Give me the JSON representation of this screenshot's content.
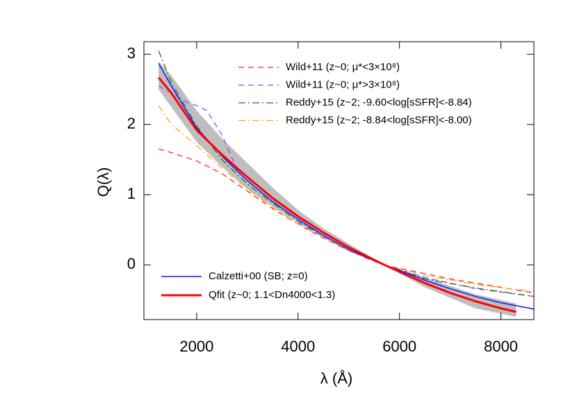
{
  "chart_data": {
    "type": "line",
    "xlabel": "λ (Å)",
    "ylabel": "Q(λ)",
    "xlim": [
      960,
      8650
    ],
    "ylim": [
      -0.78,
      3.18
    ],
    "xticks": [
      2000,
      4000,
      6000,
      8000
    ],
    "yticks": [
      0,
      1,
      2,
      3
    ],
    "band": {
      "color": "#bebebe",
      "x": [
        1250,
        1500,
        2000,
        2500,
        3000,
        3500,
        4000,
        4500,
        5000,
        5700,
        6500,
        7500,
        8300
      ],
      "upper": [
        2.9,
        2.7,
        2.2,
        1.8,
        1.45,
        1.1,
        0.78,
        0.52,
        0.3,
        0,
        -0.18,
        -0.42,
        -0.55
      ],
      "lower": [
        2.5,
        2.25,
        1.75,
        1.4,
        1.08,
        0.83,
        0.6,
        0.4,
        0.2,
        0,
        -0.32,
        -0.62,
        -0.74
      ]
    },
    "series": [
      {
        "name": "Wild+11 (z~0; μ*<3×10⁸)",
        "color": "#ff2020",
        "dash": "dashed",
        "width": 1.3,
        "x": [
          1250,
          1500,
          2000,
          2500,
          3000,
          3500,
          4000,
          4500,
          5000,
          5500,
          5700,
          6000,
          7000,
          8000,
          8650
        ],
        "values": [
          1.65,
          1.6,
          1.48,
          1.3,
          1.05,
          0.8,
          0.58,
          0.38,
          0.2,
          0.05,
          0,
          -0.05,
          -0.2,
          -0.32,
          -0.4
        ]
      },
      {
        "name": "Wild+11 (z~0; μ*>3×10⁸)",
        "color": "#a040ff",
        "dash": "dashed",
        "width": 1.3,
        "x": [
          1250,
          1500,
          1800,
          2000,
          2200,
          2500,
          2800,
          3200,
          4000,
          5000,
          5700,
          6500,
          7500,
          8650
        ],
        "values": [
          2.55,
          2.45,
          2.32,
          2.27,
          2.2,
          1.85,
          1.35,
          null,
          0.6,
          0.2,
          0,
          -0.18,
          -0.34,
          -0.45
        ]
      },
      {
        "name": "Reddy+15 (z~2; -9.60<log[sSFR]<-8.84)",
        "color": "#207020",
        "dash": "dashdot",
        "width": 1.3,
        "x": [
          1250,
          1500,
          2000,
          2500,
          3000,
          3500,
          4000,
          5000,
          5700,
          6500,
          7500,
          8650
        ],
        "values": [
          3.05,
          2.6,
          1.98,
          1.5,
          1.15,
          0.88,
          0.62,
          0.22,
          0,
          -0.2,
          -0.33,
          -0.45
        ]
      },
      {
        "name": "Reddy+15 (z~2; -8.84<log[sSFR]<-8.00)",
        "color": "#ffaa00",
        "dash": "dashdot",
        "width": 1.3,
        "x": [
          1250,
          1500,
          2000,
          2500,
          3000,
          3500,
          4000,
          5000,
          5700,
          6500,
          7500,
          8650
        ],
        "values": [
          2.27,
          2.0,
          1.7,
          1.38,
          1.08,
          0.82,
          0.58,
          0.2,
          0,
          -0.15,
          -0.28,
          -0.38
        ]
      },
      {
        "name": "Calzetti+00 (SB; z=0)",
        "color": "#1010ff",
        "dash": "solid",
        "width": 1.5,
        "x": [
          1250,
          1500,
          2000,
          2500,
          3000,
          3500,
          4000,
          4500,
          5000,
          5500,
          5700,
          6000,
          6500,
          7000,
          7500,
          8000,
          8650
        ],
        "values": [
          2.87,
          2.55,
          1.95,
          1.55,
          1.2,
          0.9,
          0.65,
          0.42,
          0.22,
          0.06,
          0,
          -0.08,
          -0.22,
          -0.34,
          -0.45,
          -0.54,
          -0.63
        ]
      },
      {
        "name": "Qfit (z~0; 1.1<Dn4000<1.3)",
        "color": "#ff0000",
        "dash": "solid",
        "width": 3,
        "x": [
          1250,
          1500,
          2000,
          2500,
          3000,
          3500,
          4000,
          4500,
          5000,
          5500,
          5700,
          6000,
          6500,
          7000,
          7500,
          8000,
          8300
        ],
        "values": [
          2.67,
          2.45,
          1.92,
          1.57,
          1.25,
          0.95,
          0.69,
          0.46,
          0.25,
          0.07,
          0,
          -0.1,
          -0.26,
          -0.4,
          -0.52,
          -0.62,
          -0.67
        ]
      }
    ]
  }
}
